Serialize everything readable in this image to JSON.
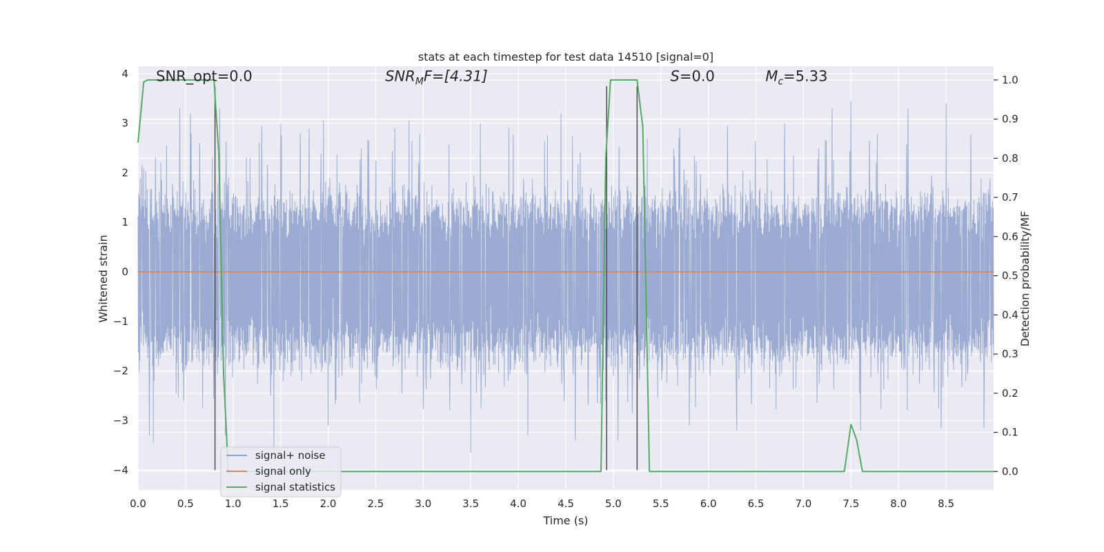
{
  "chart_data": {
    "type": "line",
    "title": "stats at each timestep for test data 14510 [signal=0]",
    "xlabel": "Time (s)",
    "ylabel": "Whitened strain",
    "y2label": "Detection probability/MF",
    "xlim": [
      0.0,
      9.0
    ],
    "ylim": [
      -4.4,
      4.15
    ],
    "y2lim": [
      -0.047,
      1.035
    ],
    "xticks": [
      0.0,
      0.5,
      1.0,
      1.5,
      2.0,
      2.5,
      3.0,
      3.5,
      4.0,
      4.5,
      5.0,
      5.5,
      6.0,
      6.5,
      7.0,
      7.5,
      8.0,
      8.5
    ],
    "yticks": [
      -4,
      -3,
      -2,
      -1,
      0,
      1,
      2,
      3,
      4
    ],
    "y2ticks": [
      0.0,
      0.1,
      0.2,
      0.3,
      0.4,
      0.5,
      0.6,
      0.7,
      0.8,
      0.9,
      1.0
    ],
    "grid": true,
    "legend_position": "lower-left",
    "annotations": [
      {
        "id": "snr-opt",
        "text": "SNR_opt=0.0",
        "x": 0.19,
        "y": 3.85
      },
      {
        "id": "snr-mf",
        "text": "SNR_MF=[4.31]",
        "x": 2.6,
        "y": 3.85
      },
      {
        "id": "s-value",
        "text": "S=0.0",
        "x": 5.6,
        "y": 3.85
      },
      {
        "id": "mc-value",
        "text": "M_c=5.33",
        "x": 6.6,
        "y": 3.85
      }
    ],
    "vertical_lines": [
      {
        "x": 0.81,
        "y_from": -4.0,
        "y_to": 3.75
      },
      {
        "x": 4.93,
        "y_from": -4.0,
        "y_to": 3.75
      },
      {
        "x": 5.25,
        "y_from": -4.0,
        "y_to": 3.75
      }
    ],
    "series": [
      {
        "name": "signal+ noise",
        "color": "#8da0cb",
        "kind": "noise",
        "axis": "left",
        "typical_envelope": [
          -1.7,
          1.4
        ],
        "peaks": [
          {
            "x": 0.06,
            "y": 2.1
          },
          {
            "x": 0.12,
            "y": -3.3
          },
          {
            "x": 0.16,
            "y": -3.45
          },
          {
            "x": 0.3,
            "y": 2.55
          },
          {
            "x": 0.44,
            "y": 3.3
          },
          {
            "x": 0.48,
            "y": -2.6
          },
          {
            "x": 0.55,
            "y": 3.2
          },
          {
            "x": 0.78,
            "y": 2.3
          },
          {
            "x": 0.86,
            "y": 3.3
          },
          {
            "x": 0.92,
            "y": -3.3
          },
          {
            "x": 1.3,
            "y": 2.95
          },
          {
            "x": 1.43,
            "y": -3.55
          },
          {
            "x": 1.5,
            "y": 3.0
          },
          {
            "x": 1.8,
            "y": 2.9
          },
          {
            "x": 1.95,
            "y": 3.05
          },
          {
            "x": 2.0,
            "y": -3.1
          },
          {
            "x": 2.7,
            "y": 2.9
          },
          {
            "x": 2.85,
            "y": 3.05
          },
          {
            "x": 3.5,
            "y": -3.65
          },
          {
            "x": 3.6,
            "y": 3.0
          },
          {
            "x": 3.9,
            "y": 2.9
          },
          {
            "x": 4.1,
            "y": -3.3
          },
          {
            "x": 4.45,
            "y": 3.2
          },
          {
            "x": 4.6,
            "y": -3.4
          },
          {
            "x": 5.05,
            "y": -3.4
          },
          {
            "x": 5.2,
            "y": -2.85
          },
          {
            "x": 5.7,
            "y": 2.9
          },
          {
            "x": 5.8,
            "y": -3.1
          },
          {
            "x": 6.2,
            "y": 2.95
          },
          {
            "x": 6.3,
            "y": -3.2
          },
          {
            "x": 6.8,
            "y": 3.0
          },
          {
            "x": 7.3,
            "y": 3.3
          },
          {
            "x": 7.5,
            "y": 3.45
          },
          {
            "x": 7.6,
            "y": -3.2
          },
          {
            "x": 8.1,
            "y": 3.3
          },
          {
            "x": 8.45,
            "y": -3.15
          },
          {
            "x": 8.5,
            "y": 3.4
          },
          {
            "x": 8.9,
            "y": -3.15
          }
        ]
      },
      {
        "name": "signal only",
        "color": "#dd8452",
        "axis": "left",
        "x": [
          0.0,
          9.0
        ],
        "y": [
          0.0,
          0.0
        ]
      },
      {
        "name": "signal statistics",
        "color": "#55a868",
        "axis": "right",
        "x": [
          0.0,
          0.06,
          0.1,
          0.8,
          0.85,
          0.9,
          0.95,
          4.87,
          4.92,
          4.97,
          5.25,
          5.31,
          5.38,
          7.43,
          7.5,
          7.56,
          7.62,
          9.0
        ],
        "y": [
          0.84,
          0.995,
          1.0,
          1.0,
          0.81,
          0.25,
          0.0,
          0.0,
          0.8,
          1.0,
          1.0,
          0.88,
          0.0,
          0.0,
          0.12,
          0.08,
          0.0,
          0.0
        ]
      }
    ]
  }
}
